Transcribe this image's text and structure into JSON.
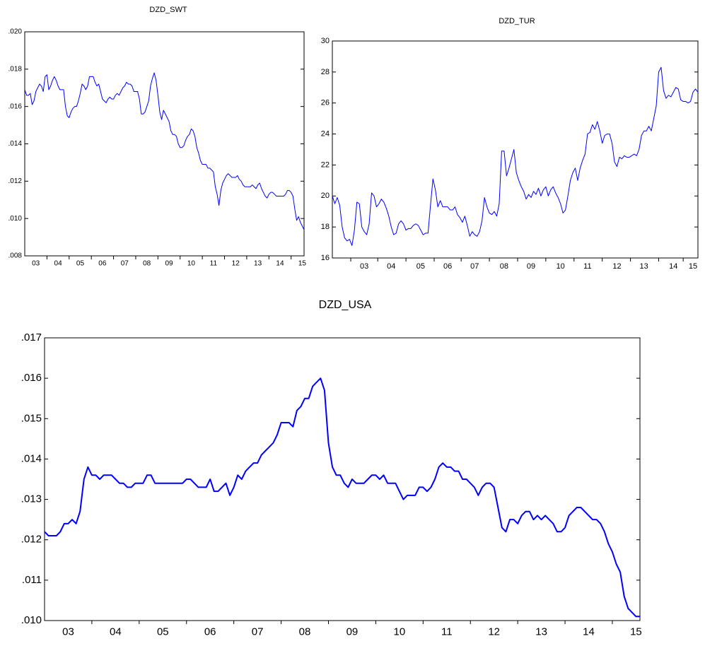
{
  "chart_data": [
    {
      "type": "line",
      "title": "DZD_SWT",
      "color": "#0000ff",
      "categories": [
        null,
        null,
        null,
        null,
        null,
        null,
        "03",
        null,
        null,
        null,
        null,
        null,
        null,
        null,
        null,
        null,
        null,
        null,
        "04",
        null,
        null,
        null,
        null,
        null,
        null,
        null,
        null,
        null,
        null,
        null,
        "05",
        null,
        null,
        null,
        null,
        null,
        null,
        null,
        null,
        null,
        null,
        null,
        "06",
        null,
        null,
        null,
        null,
        null,
        null,
        null,
        null,
        null,
        null,
        null,
        "07",
        null,
        null,
        null,
        null,
        null,
        null,
        null,
        null,
        null,
        null,
        null,
        "08",
        null,
        null,
        null,
        null,
        null,
        null,
        null,
        null,
        null,
        null,
        null,
        "09",
        null,
        null,
        null,
        null,
        null,
        null,
        null,
        null,
        null,
        null,
        null,
        "10",
        null,
        null,
        null,
        null,
        null,
        null,
        null,
        null,
        null,
        null,
        null,
        "11",
        null,
        null,
        null,
        null,
        null,
        null,
        null,
        null,
        null,
        null,
        null,
        "12",
        null,
        null,
        null,
        null,
        null,
        null,
        null,
        null,
        null,
        null,
        null,
        "13",
        null,
        null,
        null,
        null,
        null,
        null,
        null,
        null,
        null,
        null,
        null,
        "14",
        null,
        null,
        null,
        null,
        null,
        null,
        null,
        null,
        null,
        null,
        null,
        "15",
        null
      ],
      "values": [
        0.0169,
        0.0166,
        0.0166,
        0.0167,
        0.0161,
        0.0163,
        0.0168,
        0.017,
        0.0172,
        0.0171,
        0.0168,
        0.0176,
        0.0177,
        0.0169,
        0.0171,
        0.0174,
        0.0176,
        0.0174,
        0.0171,
        0.0169,
        0.0169,
        0.0169,
        0.016,
        0.0155,
        0.0154,
        0.0157,
        0.0159,
        0.016,
        0.016,
        0.0163,
        0.0167,
        0.0172,
        0.0171,
        0.0169,
        0.0171,
        0.0176,
        0.0176,
        0.0176,
        0.0173,
        0.0171,
        0.0172,
        0.0168,
        0.0164,
        0.0163,
        0.0162,
        0.0164,
        0.0165,
        0.0164,
        0.0164,
        0.0166,
        0.0167,
        0.0166,
        0.0168,
        0.017,
        0.0171,
        0.0173,
        0.0172,
        0.0172,
        0.0171,
        0.0168,
        0.0168,
        0.0168,
        0.0164,
        0.0156,
        0.0156,
        0.0157,
        0.016,
        0.0163,
        0.0171,
        0.0175,
        0.0178,
        0.0174,
        0.0166,
        0.0157,
        0.0153,
        0.0158,
        0.0156,
        0.0154,
        0.0152,
        0.0147,
        0.0145,
        0.0145,
        0.0144,
        0.014,
        0.0138,
        0.0138,
        0.0139,
        0.0142,
        0.0144,
        0.0145,
        0.0148,
        0.0147,
        0.0144,
        0.0138,
        0.0135,
        0.0131,
        0.0129,
        0.0129,
        0.0129,
        0.0127,
        0.0127,
        0.0126,
        0.0125,
        0.0117,
        0.0113,
        0.0107,
        0.0115,
        0.0119,
        0.0121,
        0.0123,
        0.0124,
        0.0123,
        0.0122,
        0.0122,
        0.0122,
        0.0123,
        0.0121,
        0.012,
        0.0118,
        0.0117,
        0.0117,
        0.0117,
        0.0117,
        0.0118,
        0.0117,
        0.0116,
        0.0118,
        0.0119,
        0.0116,
        0.0114,
        0.0112,
        0.0111,
        0.0113,
        0.0114,
        0.0114,
        0.0113,
        0.0112,
        0.0112,
        0.0112,
        0.0112,
        0.0112,
        0.0113,
        0.0115,
        0.0115,
        0.0114,
        0.0112,
        0.0105,
        0.0099,
        0.0101,
        0.0098,
        0.0096,
        0.0094
      ],
      "ylim": [
        0.008,
        0.02
      ],
      "yticks": [
        {
          "value": 0.008,
          "label": ".008"
        },
        {
          "value": 0.01,
          "label": ".010"
        },
        {
          "value": 0.012,
          "label": ".012"
        },
        {
          "value": 0.014,
          "label": ".014"
        },
        {
          "value": 0.016,
          "label": ".016"
        },
        {
          "value": 0.018,
          "label": ".018"
        },
        {
          "value": 0.02,
          "label": ".020"
        }
      ]
    },
    {
      "type": "line",
      "title": "DZD_TUR",
      "color": "#0000ff",
      "categories": [
        null,
        null,
        null,
        null,
        null,
        null,
        null,
        null,
        null,
        null,
        null,
        null,
        null,
        "03",
        null,
        null,
        null,
        null,
        null,
        null,
        null,
        null,
        null,
        null,
        "04",
        null,
        null,
        null,
        null,
        null,
        null,
        null,
        null,
        null,
        null,
        null,
        "05",
        null,
        null,
        null,
        null,
        null,
        null,
        null,
        null,
        null,
        null,
        "06",
        null,
        null,
        null,
        null,
        null,
        null,
        null,
        null,
        null,
        null,
        "07",
        null,
        null,
        null,
        null,
        null,
        null,
        null,
        null,
        null,
        null,
        null,
        "08",
        null,
        null,
        null,
        null,
        null,
        null,
        null,
        null,
        null,
        null,
        "09",
        null,
        null,
        null,
        null,
        null,
        null,
        null,
        null,
        null,
        null,
        null,
        "10",
        null,
        null,
        null,
        null,
        null,
        null,
        null,
        null,
        null,
        null,
        "11",
        null,
        null,
        null,
        null,
        null,
        null,
        null,
        null,
        null,
        null,
        null,
        "12",
        null,
        null,
        null,
        null,
        null,
        null,
        null,
        null,
        null,
        null,
        "13",
        null,
        null,
        null,
        null,
        null,
        null,
        null,
        null,
        null,
        null,
        null,
        "14",
        null,
        null,
        null,
        null,
        null,
        null,
        null,
        "15",
        null,
        null
      ],
      "values": [
        20.0,
        19.5,
        19.9,
        19.4,
        18.0,
        17.3,
        17.1,
        17.2,
        16.8,
        17.8,
        19.6,
        19.5,
        18.0,
        17.7,
        17.5,
        18.2,
        20.2,
        20.0,
        19.3,
        19.5,
        19.8,
        19.6,
        19.2,
        18.7,
        18.0,
        17.5,
        17.6,
        18.2,
        18.4,
        18.2,
        17.8,
        17.9,
        17.9,
        18.1,
        18.2,
        18.1,
        17.8,
        17.5,
        17.6,
        17.6,
        19.4,
        21.1,
        20.4,
        19.3,
        19.7,
        19.3,
        19.3,
        19.3,
        19.1,
        19.1,
        19.3,
        18.8,
        18.6,
        18.3,
        18.7,
        18.1,
        17.4,
        17.7,
        17.5,
        17.4,
        17.7,
        18.4,
        19.9,
        19.3,
        18.9,
        18.8,
        19.0,
        18.7,
        19.5,
        22.9,
        22.9,
        21.3,
        21.8,
        22.4,
        23.0,
        21.5,
        21.0,
        20.6,
        20.3,
        19.8,
        20.1,
        19.9,
        20.3,
        20.1,
        20.5,
        20.0,
        20.4,
        20.6,
        20.0,
        20.4,
        20.6,
        20.2,
        19.9,
        19.5,
        18.9,
        19.1,
        20.0,
        21.0,
        21.5,
        21.8,
        21.0,
        21.8,
        22.3,
        22.7,
        24.0,
        24.1,
        24.6,
        24.3,
        24.8,
        24.2,
        23.4,
        23.9,
        24.0,
        24.0,
        23.4,
        22.2,
        21.9,
        22.5,
        22.4,
        22.6,
        22.5,
        22.5,
        22.6,
        22.7,
        22.6,
        23.0,
        23.9,
        24.2,
        24.2,
        24.5,
        24.2,
        25.0,
        25.8,
        28.0,
        28.3,
        26.8,
        26.3,
        26.5,
        26.4,
        26.7,
        27.0,
        26.9,
        26.2,
        26.1,
        26.1,
        26.0,
        26.1,
        26.7,
        26.9,
        26.7
      ],
      "ylim": [
        16,
        30
      ],
      "yticks": [
        16,
        18,
        20,
        22,
        24,
        26,
        28,
        30
      ]
    },
    {
      "type": "line",
      "title": "DZD_USA",
      "color": "#0000ff",
      "categories": [
        null,
        null,
        null,
        null,
        null,
        null,
        "03",
        null,
        null,
        null,
        null,
        null,
        null,
        null,
        null,
        null,
        null,
        null,
        "04",
        null,
        null,
        null,
        null,
        null,
        null,
        null,
        null,
        null,
        null,
        null,
        "05",
        null,
        null,
        null,
        null,
        null,
        null,
        null,
        null,
        null,
        null,
        null,
        "06",
        null,
        null,
        null,
        null,
        null,
        null,
        null,
        null,
        null,
        null,
        null,
        "07",
        null,
        null,
        null,
        null,
        null,
        null,
        null,
        null,
        null,
        null,
        null,
        "08",
        null,
        null,
        null,
        null,
        null,
        null,
        null,
        null,
        null,
        null,
        null,
        "09",
        null,
        null,
        null,
        null,
        null,
        null,
        null,
        null,
        null,
        null,
        null,
        "10",
        null,
        null,
        null,
        null,
        null,
        null,
        null,
        null,
        null,
        null,
        null,
        "11",
        null,
        null,
        null,
        null,
        null,
        null,
        null,
        null,
        null,
        null,
        null,
        "12",
        null,
        null,
        null,
        null,
        null,
        null,
        null,
        null,
        null,
        null,
        null,
        "13",
        null,
        null,
        null,
        null,
        null,
        null,
        null,
        null,
        null,
        null,
        null,
        "14",
        null,
        null,
        null,
        null,
        null,
        null,
        null,
        null,
        null,
        null,
        null,
        "15",
        null
      ],
      "values": [
        0.0122,
        0.0121,
        0.0121,
        0.0121,
        0.0122,
        0.0124,
        0.0124,
        0.0125,
        0.0124,
        0.0127,
        0.0135,
        0.0138,
        0.0136,
        0.0136,
        0.0135,
        0.0136,
        0.0136,
        0.0136,
        0.0135,
        0.0134,
        0.0134,
        0.0133,
        0.0133,
        0.0134,
        0.0134,
        0.0134,
        0.0136,
        0.0136,
        0.0134,
        0.0134,
        0.0134,
        0.0134,
        0.0134,
        0.0134,
        0.0134,
        0.0134,
        0.0135,
        0.0135,
        0.0134,
        0.0133,
        0.0133,
        0.0133,
        0.0135,
        0.0132,
        0.0132,
        0.0133,
        0.0134,
        0.0131,
        0.0133,
        0.0136,
        0.0135,
        0.0137,
        0.0138,
        0.0139,
        0.0139,
        0.0141,
        0.0142,
        0.0143,
        0.0144,
        0.0146,
        0.0149,
        0.0149,
        0.0149,
        0.0148,
        0.0152,
        0.0153,
        0.0155,
        0.0155,
        0.0158,
        0.0159,
        0.016,
        0.0157,
        0.0144,
        0.0138,
        0.0136,
        0.0136,
        0.0134,
        0.0133,
        0.0135,
        0.0134,
        0.0134,
        0.0134,
        0.0135,
        0.0136,
        0.0136,
        0.0135,
        0.0136,
        0.0134,
        0.0134,
        0.0134,
        0.0132,
        0.013,
        0.0131,
        0.0131,
        0.0131,
        0.0133,
        0.0133,
        0.0132,
        0.0133,
        0.0135,
        0.0138,
        0.0139,
        0.0138,
        0.0138,
        0.0137,
        0.0137,
        0.0135,
        0.0135,
        0.0134,
        0.0133,
        0.0131,
        0.0133,
        0.0134,
        0.0134,
        0.0133,
        0.0128,
        0.0123,
        0.0122,
        0.0125,
        0.0125,
        0.0124,
        0.0126,
        0.0127,
        0.0127,
        0.0125,
        0.0126,
        0.0125,
        0.0126,
        0.0125,
        0.0124,
        0.0122,
        0.0122,
        0.0123,
        0.0126,
        0.0127,
        0.0128,
        0.0128,
        0.0127,
        0.0126,
        0.0125,
        0.0125,
        0.0124,
        0.0122,
        0.0119,
        0.0117,
        0.0114,
        0.0112,
        0.0106,
        0.0103,
        0.0102,
        0.0101,
        0.0101
      ],
      "ylim": [
        0.01,
        0.017
      ],
      "yticks": [
        {
          "value": 0.01,
          "label": ".010"
        },
        {
          "value": 0.011,
          "label": ".011"
        },
        {
          "value": 0.012,
          "label": ".012"
        },
        {
          "value": 0.013,
          "label": ".013"
        },
        {
          "value": 0.014,
          "label": ".014"
        },
        {
          "value": 0.015,
          "label": ".015"
        },
        {
          "value": 0.016,
          "label": ".016"
        },
        {
          "value": 0.017,
          "label": ".017"
        }
      ]
    }
  ]
}
